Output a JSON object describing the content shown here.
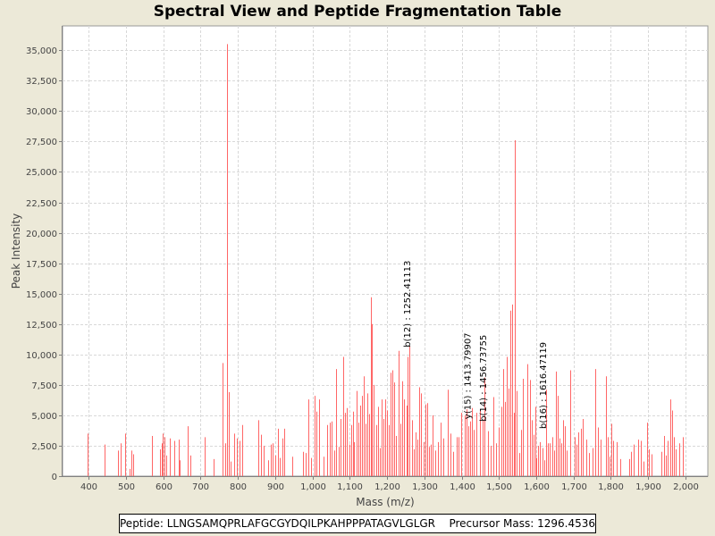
{
  "chart_data": {
    "type": "bar",
    "title": "Spectral View and Peptide Fragmentation Table",
    "xlabel": "Mass (m/z)",
    "ylabel": "Peak Intensity",
    "xlim": [
      330,
      2060
    ],
    "ylim": [
      0,
      37000
    ],
    "x_ticks": [
      {
        "v": 400,
        "label": "400"
      },
      {
        "v": 500,
        "label": "500"
      },
      {
        "v": 600,
        "label": "600"
      },
      {
        "v": 700,
        "label": "700"
      },
      {
        "v": 800,
        "label": "800"
      },
      {
        "v": 900,
        "label": "900"
      },
      {
        "v": 1000,
        "label": "1,000"
      },
      {
        "v": 1100,
        "label": "1,100"
      },
      {
        "v": 1200,
        "label": "1,200"
      },
      {
        "v": 1300,
        "label": "1,300"
      },
      {
        "v": 1400,
        "label": "1,400"
      },
      {
        "v": 1500,
        "label": "1,500"
      },
      {
        "v": 1600,
        "label": "1,600"
      },
      {
        "v": 1700,
        "label": "1,700"
      },
      {
        "v": 1800,
        "label": "1,800"
      },
      {
        "v": 1900,
        "label": "1,900"
      },
      {
        "v": 2000,
        "label": "2,000"
      }
    ],
    "y_ticks": [
      {
        "v": 0,
        "label": "0"
      },
      {
        "v": 2500,
        "label": "2,500"
      },
      {
        "v": 5000,
        "label": "5,000"
      },
      {
        "v": 7500,
        "label": "7,500"
      },
      {
        "v": 10000,
        "label": "10,000"
      },
      {
        "v": 12500,
        "label": "12,500"
      },
      {
        "v": 15000,
        "label": "15,000"
      },
      {
        "v": 17500,
        "label": "17,500"
      },
      {
        "v": 20000,
        "label": "20,000"
      },
      {
        "v": 22500,
        "label": "22,500"
      },
      {
        "v": 25000,
        "label": "25,000"
      },
      {
        "v": 27500,
        "label": "27,500"
      },
      {
        "v": 30000,
        "label": "30,000"
      },
      {
        "v": 32500,
        "label": "32,500"
      },
      {
        "v": 35000,
        "label": "35,000"
      }
    ],
    "grid": true,
    "series": [
      {
        "name": "peaks",
        "color": "#ff6666",
        "points": [
          [
            398,
            3500
          ],
          [
            443,
            2600
          ],
          [
            478,
            2100
          ],
          [
            485,
            2700
          ],
          [
            498,
            3500
          ],
          [
            510,
            600
          ],
          [
            515,
            2100
          ],
          [
            520,
            1800
          ],
          [
            570,
            3300
          ],
          [
            590,
            2200
          ],
          [
            595,
            2700
          ],
          [
            598,
            3500
          ],
          [
            602,
            3200
          ],
          [
            607,
            1700
          ],
          [
            618,
            3100
          ],
          [
            630,
            2900
          ],
          [
            642,
            3000
          ],
          [
            645,
            1300
          ],
          [
            665,
            4100
          ],
          [
            672,
            1700
          ],
          [
            712,
            3200
          ],
          [
            735,
            1400
          ],
          [
            758,
            9300
          ],
          [
            765,
            2700
          ],
          [
            772,
            35500
          ],
          [
            776,
            6900
          ],
          [
            780,
            1200
          ],
          [
            790,
            3500
          ],
          [
            797,
            3100
          ],
          [
            805,
            2900
          ],
          [
            812,
            4200
          ],
          [
            855,
            4600
          ],
          [
            862,
            3400
          ],
          [
            868,
            2500
          ],
          [
            882,
            1300
          ],
          [
            888,
            2600
          ],
          [
            893,
            2700
          ],
          [
            900,
            1700
          ],
          [
            907,
            3900
          ],
          [
            913,
            1500
          ],
          [
            920,
            3100
          ],
          [
            925,
            3900
          ],
          [
            945,
            1600
          ],
          [
            975,
            2000
          ],
          [
            982,
            1900
          ],
          [
            990,
            6300
          ],
          [
            996,
            1500
          ],
          [
            1005,
            6600
          ],
          [
            1010,
            5300
          ],
          [
            1018,
            6300
          ],
          [
            1030,
            1600
          ],
          [
            1040,
            4200
          ],
          [
            1047,
            4400
          ],
          [
            1052,
            4500
          ],
          [
            1058,
            2100
          ],
          [
            1063,
            8800
          ],
          [
            1070,
            2400
          ],
          [
            1076,
            4700
          ],
          [
            1083,
            9800
          ],
          [
            1088,
            5200
          ],
          [
            1093,
            5600
          ],
          [
            1098,
            2600
          ],
          [
            1103,
            4200
          ],
          [
            1108,
            5300
          ],
          [
            1112,
            2800
          ],
          [
            1118,
            7000
          ],
          [
            1123,
            4400
          ],
          [
            1127,
            5800
          ],
          [
            1133,
            6600
          ],
          [
            1138,
            8200
          ],
          [
            1142,
            4300
          ],
          [
            1147,
            6800
          ],
          [
            1152,
            5100
          ],
          [
            1157,
            14700
          ],
          [
            1160,
            12500
          ],
          [
            1165,
            7500
          ],
          [
            1170,
            4200
          ],
          [
            1175,
            5700
          ],
          [
            1180,
            2300
          ],
          [
            1185,
            6300
          ],
          [
            1190,
            4700
          ],
          [
            1195,
            6300
          ],
          [
            1200,
            5400
          ],
          [
            1205,
            4200
          ],
          [
            1210,
            8500
          ],
          [
            1215,
            8700
          ],
          [
            1220,
            7700
          ],
          [
            1224,
            3300
          ],
          [
            1230,
            10300
          ],
          [
            1235,
            4300
          ],
          [
            1240,
            7800
          ],
          [
            1245,
            6300
          ],
          [
            1252,
            5800
          ],
          [
            1256,
            9800
          ],
          [
            1260,
            10700
          ],
          [
            1266,
            4600
          ],
          [
            1272,
            2200
          ],
          [
            1277,
            3600
          ],
          [
            1282,
            3000
          ],
          [
            1287,
            7300
          ],
          [
            1292,
            6800
          ],
          [
            1298,
            2800
          ],
          [
            1303,
            5900
          ],
          [
            1308,
            6000
          ],
          [
            1313,
            2400
          ],
          [
            1318,
            2600
          ],
          [
            1323,
            5000
          ],
          [
            1328,
            2100
          ],
          [
            1336,
            2800
          ],
          [
            1343,
            4400
          ],
          [
            1350,
            3100
          ],
          [
            1362,
            7100
          ],
          [
            1370,
            3500
          ],
          [
            1378,
            2000
          ],
          [
            1387,
            3200
          ],
          [
            1392,
            3200
          ],
          [
            1398,
            5200
          ],
          [
            1408,
            5000
          ],
          [
            1413,
            5500
          ],
          [
            1418,
            4100
          ],
          [
            1423,
            4500
          ],
          [
            1428,
            5600
          ],
          [
            1433,
            3800
          ],
          [
            1439,
            5200
          ],
          [
            1449,
            5500
          ],
          [
            1456,
            4600
          ],
          [
            1462,
            8100
          ],
          [
            1470,
            3700
          ],
          [
            1478,
            2500
          ],
          [
            1485,
            6500
          ],
          [
            1493,
            2700
          ],
          [
            1500,
            4000
          ],
          [
            1506,
            5700
          ],
          [
            1511,
            8800
          ],
          [
            1515,
            6100
          ],
          [
            1520,
            9800
          ],
          [
            1525,
            7200
          ],
          [
            1530,
            13600
          ],
          [
            1535,
            14100
          ],
          [
            1540,
            5200
          ],
          [
            1543,
            27600
          ],
          [
            1548,
            7000
          ],
          [
            1555,
            1900
          ],
          [
            1560,
            3800
          ],
          [
            1565,
            8000
          ],
          [
            1577,
            9200
          ],
          [
            1582,
            7900
          ],
          [
            1588,
            4600
          ],
          [
            1593,
            3400
          ],
          [
            1597,
            5700
          ],
          [
            1600,
            1500
          ],
          [
            1604,
            2500
          ],
          [
            1610,
            2800
          ],
          [
            1616,
            2300
          ],
          [
            1621,
            1300
          ],
          [
            1627,
            7100
          ],
          [
            1632,
            2700
          ],
          [
            1637,
            2700
          ],
          [
            1643,
            3200
          ],
          [
            1648,
            2100
          ],
          [
            1652,
            8600
          ],
          [
            1657,
            6600
          ],
          [
            1663,
            3100
          ],
          [
            1667,
            2700
          ],
          [
            1672,
            4600
          ],
          [
            1676,
            4100
          ],
          [
            1681,
            2100
          ],
          [
            1692,
            8700
          ],
          [
            1702,
            3200
          ],
          [
            1707,
            2600
          ],
          [
            1713,
            3600
          ],
          [
            1719,
            3900
          ],
          [
            1725,
            4700
          ],
          [
            1734,
            3000
          ],
          [
            1741,
            1900
          ],
          [
            1752,
            2300
          ],
          [
            1758,
            8800
          ],
          [
            1765,
            4000
          ],
          [
            1772,
            3000
          ],
          [
            1787,
            8200
          ],
          [
            1792,
            3200
          ],
          [
            1797,
            1600
          ],
          [
            1802,
            4300
          ],
          [
            1807,
            2900
          ],
          [
            1815,
            2800
          ],
          [
            1825,
            1400
          ],
          [
            1848,
            1400
          ],
          [
            1855,
            2000
          ],
          [
            1862,
            2600
          ],
          [
            1873,
            3000
          ],
          [
            1880,
            2900
          ],
          [
            1887,
            1200
          ],
          [
            1898,
            4400
          ],
          [
            1903,
            2200
          ],
          [
            1908,
            1800
          ],
          [
            1935,
            2000
          ],
          [
            1942,
            3300
          ],
          [
            1948,
            1700
          ],
          [
            1953,
            2900
          ],
          [
            1960,
            6300
          ],
          [
            1965,
            5400
          ],
          [
            1968,
            3200
          ],
          [
            1974,
            2200
          ],
          [
            1983,
            2700
          ],
          [
            1992,
            3200
          ]
        ]
      }
    ],
    "annotations": [
      {
        "x": 1252.41113,
        "y": 10300,
        "label": "b(12) : 1252.41113"
      },
      {
        "x": 1413.79907,
        "y": 4400,
        "label": "y(15) : 1413.79907"
      },
      {
        "x": 1456.73755,
        "y": 4200,
        "label": "b(14) : 1456.73755"
      },
      {
        "x": 1616.47119,
        "y": 3600,
        "label": "b(16) : 1616.47119"
      }
    ]
  },
  "footer": {
    "peptide": "Peptide: LLNGSAMQPRLAFGCGYDQILPKAHPPPATAGVLGLGR",
    "precursor": "Precursor Mass: 1296.4536"
  }
}
